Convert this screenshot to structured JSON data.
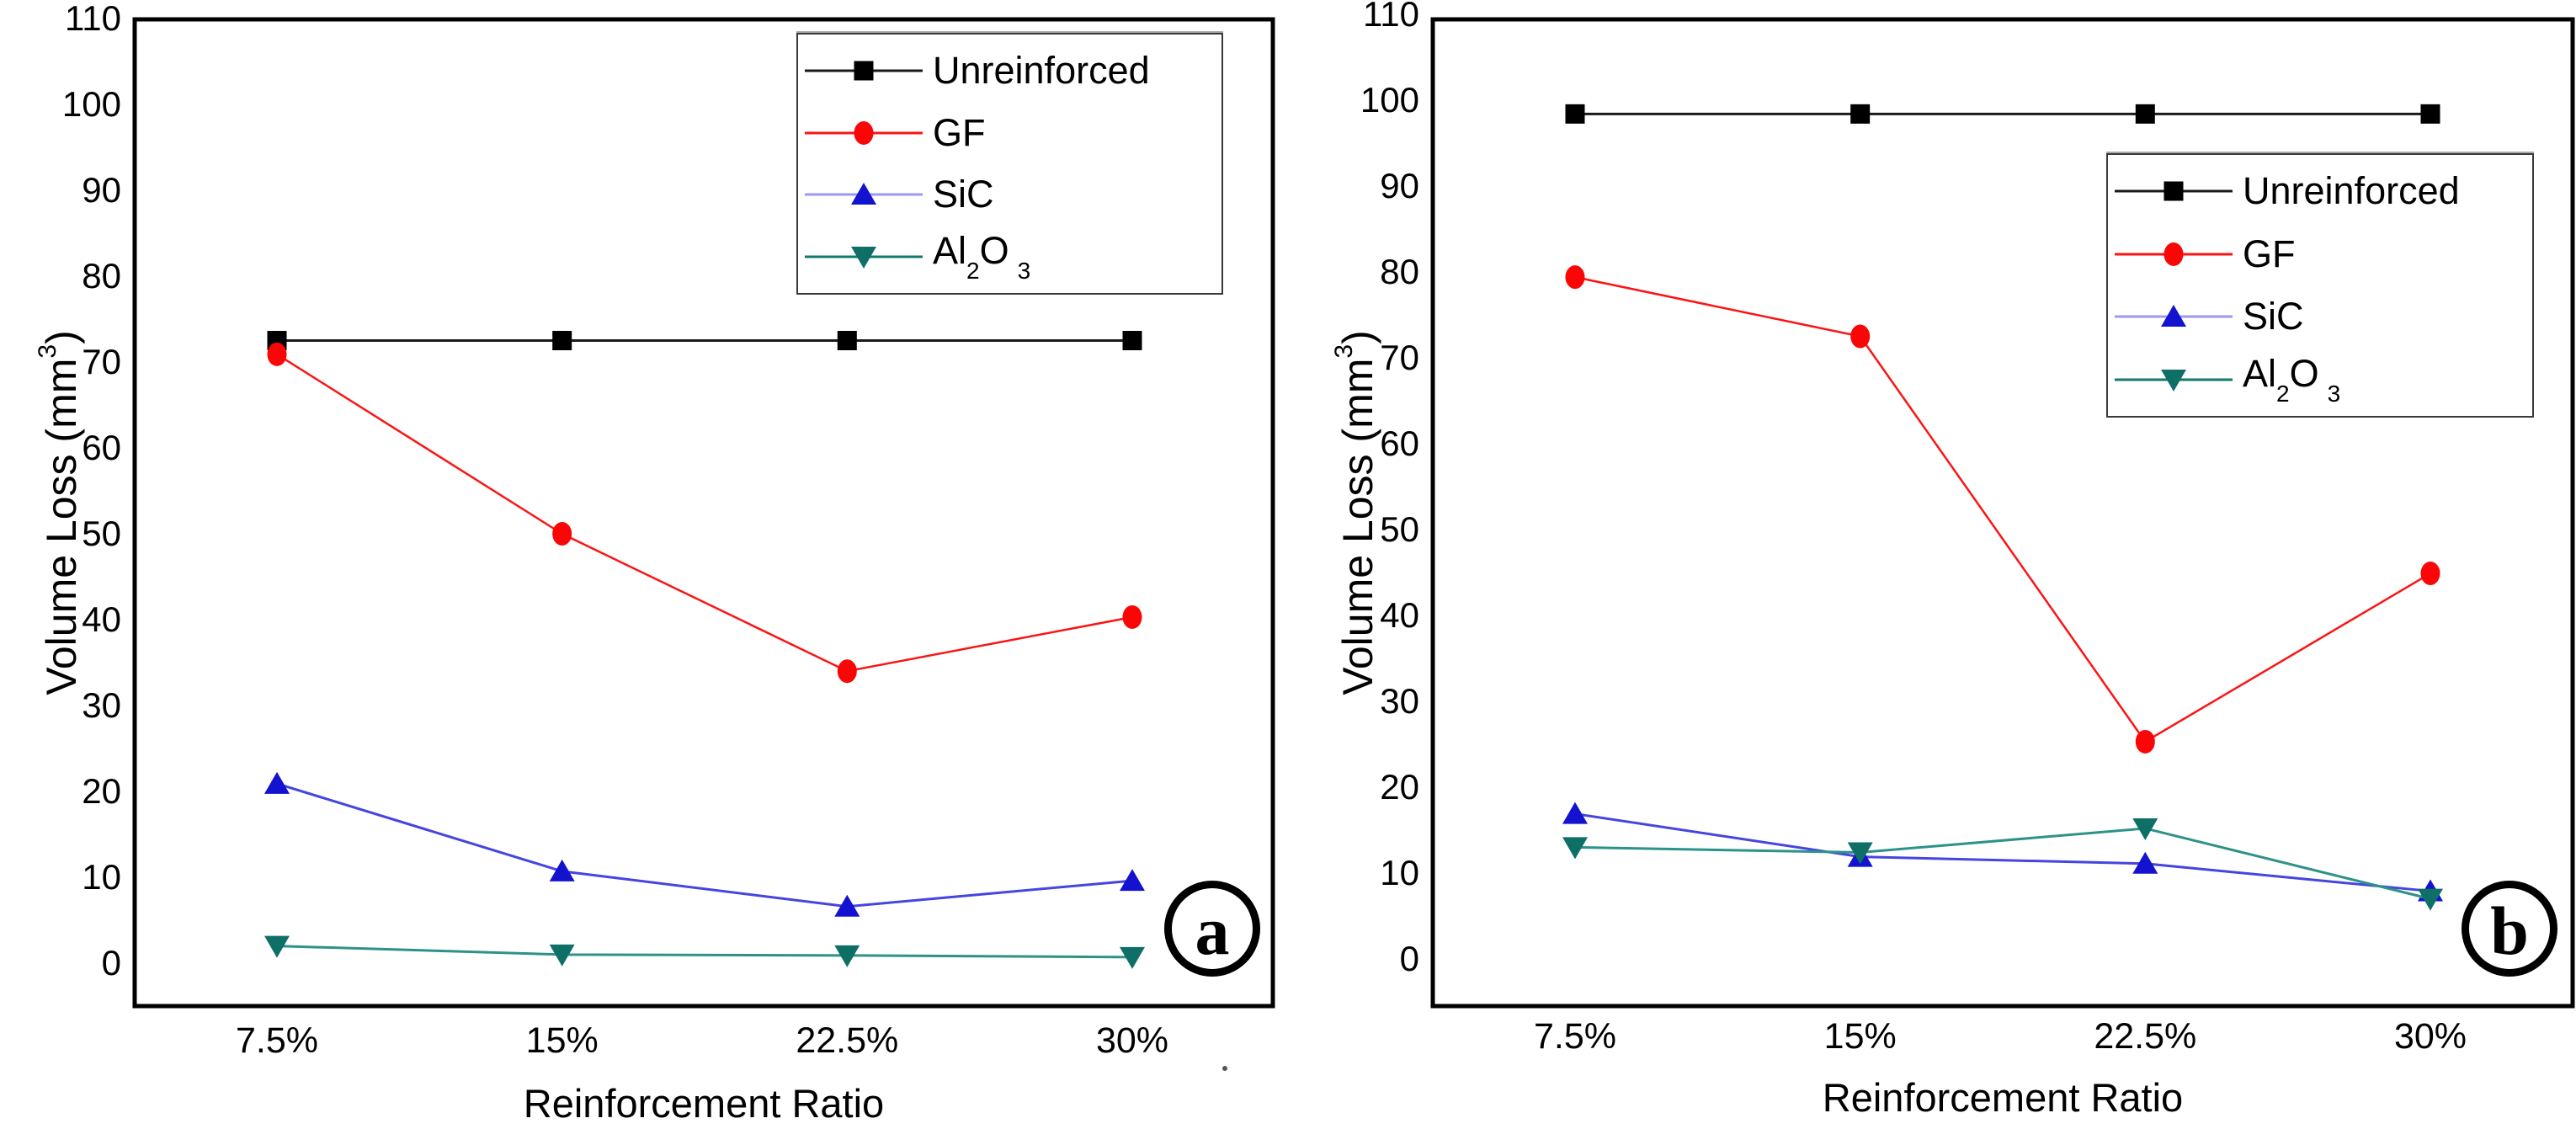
{
  "figure": {
    "y_axis_title": {
      "pre": "Volume Loss (mm",
      "sup": "3",
      "post": ")"
    },
    "x_axis_title": "Reinforcement Ratio"
  },
  "legend": {
    "entries": [
      {
        "label": "Unreinforced"
      },
      {
        "label": "GF"
      },
      {
        "label": "SiC"
      },
      {
        "label": "Al2O3",
        "parts": {
          "a": "Al",
          "sub1": "2",
          "b": "O",
          "sub2": "3"
        }
      }
    ]
  },
  "chart_data": [
    {
      "type": "line",
      "panel_label": "a",
      "xlabel": "Reinforcement Ratio",
      "ylabel": "Volume Loss (mm3)",
      "categories": [
        "7.5%",
        "15%",
        "22.5%",
        "30%"
      ],
      "ylim": [
        -5.5,
        110
      ],
      "y_ticks": [
        0,
        10,
        20,
        30,
        40,
        50,
        60,
        70,
        80,
        90,
        100,
        110
      ],
      "grid": false,
      "legend_position": "top-right-inside",
      "series": [
        {
          "name": "Unreinforced",
          "marker": "square",
          "marker_color": "#000000",
          "line_color": "#1a1a1a",
          "legend_line_color": "#1a1a1a",
          "line_width": 3,
          "values": [
            72.4,
            72.4,
            72.4,
            72.4
          ]
        },
        {
          "name": "GF",
          "marker": "circle",
          "marker_color": "#fa0606",
          "line_color": "#fb1414",
          "legend_line_color": "#fb1414",
          "line_width": 2.5,
          "values": [
            70.8,
            49.9,
            33.9,
            40.2
          ]
        },
        {
          "name": "SiC",
          "marker": "triangle-up",
          "marker_color": "#1212cf",
          "line_color": "#4545e0",
          "legend_line_color": "#9a9af2",
          "line_width": 3,
          "values": [
            20.8,
            10.6,
            6.5,
            9.5
          ]
        },
        {
          "name": "Al2O3",
          "marker": "triangle-down",
          "marker_color": "#0e6f67",
          "line_color": "#2d9289",
          "legend_line_color": "#12796f",
          "line_width": 3,
          "values": [
            1.9,
            0.9,
            0.8,
            0.6
          ]
        }
      ]
    },
    {
      "type": "line",
      "panel_label": "b",
      "xlabel": "Reinforcement Ratio",
      "ylabel": "Volume Loss (mm3)",
      "categories": [
        "7.5%",
        "15%",
        "22.5%",
        "30%"
      ],
      "ylim": [
        -5.5,
        110
      ],
      "y_ticks": [
        0,
        10,
        20,
        30,
        40,
        50,
        60,
        70,
        80,
        90,
        100,
        110
      ],
      "grid": false,
      "legend_position": "right-inside",
      "series": [
        {
          "name": "Unreinforced",
          "marker": "square",
          "marker_color": "#000000",
          "line_color": "#1a1a1a",
          "legend_line_color": "#1a1a1a",
          "line_width": 3,
          "values": [
            98.3,
            98.3,
            98.3,
            98.3
          ]
        },
        {
          "name": "GF",
          "marker": "circle",
          "marker_color": "#fa0606",
          "line_color": "#fb1414",
          "legend_line_color": "#fb1414",
          "line_width": 2.5,
          "values": [
            79.3,
            72.4,
            25.2,
            44.8
          ]
        },
        {
          "name": "SiC",
          "marker": "triangle-up",
          "marker_color": "#1212cf",
          "line_color": "#4545e0",
          "legend_line_color": "#9a9af2",
          "line_width": 3,
          "values": [
            16.8,
            11.8,
            11.0,
            7.8
          ]
        },
        {
          "name": "Al2O3",
          "marker": "triangle-down",
          "marker_color": "#0e6f67",
          "line_color": "#2d9289",
          "legend_line_color": "#12796f",
          "line_width": 3,
          "values": [
            12.9,
            12.3,
            15.1,
            6.9
          ]
        }
      ]
    }
  ]
}
